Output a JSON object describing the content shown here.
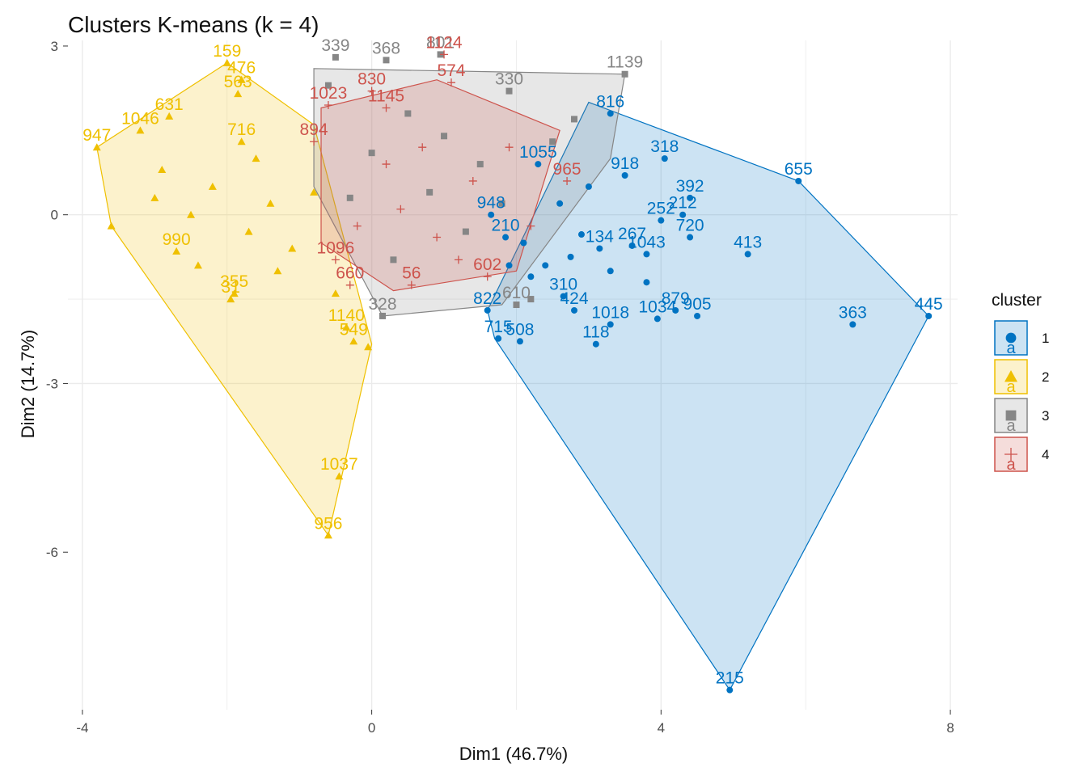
{
  "chart_data": {
    "type": "scatter",
    "title": "Clusters K-means (k = 4)",
    "xlabel": "Dim1 (46.7%)",
    "ylabel": "Dim2 (14.7%)",
    "xlim": [
      -4.2,
      8.1
    ],
    "ylim": [
      -8.8,
      3.1
    ],
    "xticks": [
      -4,
      0,
      4,
      8
    ],
    "yticks": [
      3,
      0,
      -3,
      -6
    ],
    "grid": true,
    "legend": {
      "title": "cluster",
      "placement": "right",
      "key_glyph": "a"
    },
    "series": [
      {
        "name": "1",
        "color": "#0073C2",
        "marker": "circle",
        "hull": [
          [
            1.7,
            -2.2
          ],
          [
            4.95,
            -8.45
          ],
          [
            7.7,
            -1.8
          ],
          [
            5.9,
            0.6
          ],
          [
            3.0,
            2.0
          ],
          [
            1.6,
            -1.7
          ]
        ],
        "points": [
          {
            "x": 4.95,
            "y": -8.45,
            "label": "215"
          },
          {
            "x": 7.7,
            "y": -1.8,
            "label": "445"
          },
          {
            "x": 6.65,
            "y": -1.95,
            "label": "363"
          },
          {
            "x": 5.9,
            "y": 0.6,
            "label": "655"
          },
          {
            "x": 5.2,
            "y": -0.7,
            "label": "413"
          },
          {
            "x": 4.4,
            "y": 0.3,
            "label": "392"
          },
          {
            "x": 4.05,
            "y": 1.0,
            "label": "318"
          },
          {
            "x": 4.5,
            "y": -1.8,
            "label": "905"
          },
          {
            "x": 4.2,
            "y": -1.7,
            "label": "879"
          },
          {
            "x": 3.95,
            "y": -1.85,
            "label": "1034"
          },
          {
            "x": 4.4,
            "y": -0.4,
            "label": "720"
          },
          {
            "x": 4.3,
            "y": 0.0,
            "label": "212"
          },
          {
            "x": 4.0,
            "y": -0.1,
            "label": "252"
          },
          {
            "x": 3.8,
            "y": -0.7,
            "label": "1043"
          },
          {
            "x": 3.3,
            "y": -1.95,
            "label": "1018"
          },
          {
            "x": 3.1,
            "y": -2.3,
            "label": "118"
          },
          {
            "x": 1.75,
            "y": -2.2,
            "label": "715"
          },
          {
            "x": 2.05,
            "y": -2.25,
            "label": "508"
          },
          {
            "x": 1.6,
            "y": -1.7,
            "label": "822"
          },
          {
            "x": 3.3,
            "y": 1.8,
            "label": "816"
          },
          {
            "x": 3.5,
            "y": 0.7,
            "label": "918"
          },
          {
            "x": 2.65,
            "y": -1.45,
            "label": "310"
          },
          {
            "x": 2.8,
            "y": -1.7,
            "label": "424"
          },
          {
            "x": 1.85,
            "y": -0.4,
            "label": "210"
          },
          {
            "x": 1.65,
            "y": 0.0,
            "label": "948"
          },
          {
            "x": 2.3,
            "y": 0.9,
            "label": "1055"
          },
          {
            "x": 3.15,
            "y": -0.6,
            "label": "134"
          },
          {
            "x": 3.6,
            "y": -0.55,
            "label": "267"
          },
          {
            "x": 2.1,
            "y": -0.5,
            "label": ""
          },
          {
            "x": 2.4,
            "y": -0.9,
            "label": ""
          },
          {
            "x": 2.9,
            "y": -0.35,
            "label": ""
          },
          {
            "x": 3.3,
            "y": -1.0,
            "label": ""
          },
          {
            "x": 2.6,
            "y": 0.2,
            "label": ""
          },
          {
            "x": 2.2,
            "y": -1.1,
            "label": ""
          },
          {
            "x": 3.0,
            "y": 0.5,
            "label": ""
          },
          {
            "x": 3.8,
            "y": -1.2,
            "label": ""
          },
          {
            "x": 1.9,
            "y": -0.9,
            "label": ""
          },
          {
            "x": 2.75,
            "y": -0.75,
            "label": ""
          }
        ]
      },
      {
        "name": "2",
        "color": "#EFC000",
        "marker": "triangle",
        "hull": [
          [
            -3.8,
            1.2
          ],
          [
            -2.0,
            2.7
          ],
          [
            -0.8,
            1.6
          ],
          [
            0.0,
            -2.3
          ],
          [
            -0.6,
            -5.7
          ],
          [
            -3.6,
            -0.2
          ]
        ],
        "points": [
          {
            "x": -2.0,
            "y": 2.7,
            "label": "159"
          },
          {
            "x": -3.8,
            "y": 1.2,
            "label": "947"
          },
          {
            "x": -0.6,
            "y": -5.7,
            "label": "956"
          },
          {
            "x": -0.45,
            "y": -4.65,
            "label": "1037"
          },
          {
            "x": -3.2,
            "y": 1.5,
            "label": "1046"
          },
          {
            "x": -2.8,
            "y": 1.75,
            "label": "631"
          },
          {
            "x": -1.8,
            "y": 1.3,
            "label": "716"
          },
          {
            "x": -1.8,
            "y": 2.4,
            "label": "476"
          },
          {
            "x": -1.85,
            "y": 2.15,
            "label": "563"
          },
          {
            "x": -2.7,
            "y": -0.65,
            "label": "990"
          },
          {
            "x": -1.9,
            "y": -1.4,
            "label": "355"
          },
          {
            "x": -1.95,
            "y": -1.5,
            "label": "31"
          },
          {
            "x": -0.35,
            "y": -2.0,
            "label": "1140"
          },
          {
            "x": -0.25,
            "y": -2.25,
            "label": "549"
          },
          {
            "x": -0.05,
            "y": -2.35,
            "label": ""
          },
          {
            "x": -3.6,
            "y": -0.2,
            "label": ""
          },
          {
            "x": -3.0,
            "y": 0.3,
            "label": ""
          },
          {
            "x": -2.5,
            "y": 0.0,
            "label": ""
          },
          {
            "x": -2.2,
            "y": 0.5,
            "label": ""
          },
          {
            "x": -1.7,
            "y": -0.3,
            "label": ""
          },
          {
            "x": -1.4,
            "y": 0.2,
            "label": ""
          },
          {
            "x": -1.1,
            "y": -0.6,
            "label": ""
          },
          {
            "x": -0.8,
            "y": 0.4,
            "label": ""
          },
          {
            "x": -2.4,
            "y": -0.9,
            "label": ""
          },
          {
            "x": -1.3,
            "y": -1.0,
            "label": ""
          },
          {
            "x": -0.5,
            "y": -1.4,
            "label": ""
          },
          {
            "x": -2.9,
            "y": 0.8,
            "label": ""
          },
          {
            "x": -1.6,
            "y": 1.0,
            "label": ""
          }
        ]
      },
      {
        "name": "3",
        "color": "#868686",
        "marker": "square",
        "hull": [
          [
            -0.8,
            2.6
          ],
          [
            3.5,
            2.5
          ],
          [
            3.3,
            1.0
          ],
          [
            1.8,
            -1.6
          ],
          [
            0.15,
            -1.8
          ],
          [
            -0.8,
            0.5
          ]
        ],
        "points": [
          {
            "x": 3.5,
            "y": 2.5,
            "label": "1139"
          },
          {
            "x": -0.5,
            "y": 2.8,
            "label": "339"
          },
          {
            "x": 0.2,
            "y": 2.75,
            "label": "368"
          },
          {
            "x": 0.95,
            "y": 2.85,
            "label": "801"
          },
          {
            "x": 1.9,
            "y": 2.2,
            "label": "330"
          },
          {
            "x": 0.15,
            "y": -1.8,
            "label": "328"
          },
          {
            "x": 2.0,
            "y": -1.6,
            "label": "610"
          },
          {
            "x": 2.2,
            "y": -1.5,
            "label": ""
          },
          {
            "x": -0.6,
            "y": 2.3,
            "label": ""
          },
          {
            "x": 0.5,
            "y": 1.8,
            "label": ""
          },
          {
            "x": 1.0,
            "y": 1.4,
            "label": ""
          },
          {
            "x": 1.5,
            "y": 0.9,
            "label": ""
          },
          {
            "x": 0.0,
            "y": 1.1,
            "label": ""
          },
          {
            "x": 0.8,
            "y": 0.4,
            "label": ""
          },
          {
            "x": 1.3,
            "y": -0.3,
            "label": ""
          },
          {
            "x": 2.5,
            "y": 1.3,
            "label": ""
          },
          {
            "x": 0.3,
            "y": -0.8,
            "label": ""
          },
          {
            "x": 1.8,
            "y": 0.2,
            "label": ""
          },
          {
            "x": -0.3,
            "y": 0.3,
            "label": ""
          },
          {
            "x": 2.8,
            "y": 1.7,
            "label": ""
          }
        ]
      },
      {
        "name": "4",
        "color": "#CD534C",
        "marker": "cross",
        "hull": [
          [
            -0.7,
            1.9
          ],
          [
            0.9,
            2.4
          ],
          [
            2.6,
            1.5
          ],
          [
            2.0,
            -1.0
          ],
          [
            0.3,
            -1.35
          ],
          [
            -0.7,
            -0.5
          ]
        ],
        "points": [
          {
            "x": 1.0,
            "y": 2.85,
            "label": "1124"
          },
          {
            "x": 1.1,
            "y": 2.35,
            "label": "574"
          },
          {
            "x": 0.0,
            "y": 2.2,
            "label": "830"
          },
          {
            "x": -0.6,
            "y": 1.95,
            "label": "1023"
          },
          {
            "x": -0.8,
            "y": 1.3,
            "label": "894"
          },
          {
            "x": 0.2,
            "y": 1.9,
            "label": "1145"
          },
          {
            "x": 0.55,
            "y": -1.25,
            "label": "56"
          },
          {
            "x": 1.6,
            "y": -1.1,
            "label": "602"
          },
          {
            "x": -0.3,
            "y": -1.25,
            "label": "660"
          },
          {
            "x": 2.7,
            "y": 0.6,
            "label": "965"
          },
          {
            "x": -0.5,
            "y": -0.8,
            "label": "1096"
          },
          {
            "x": 0.4,
            "y": 0.1,
            "label": ""
          },
          {
            "x": 0.9,
            "y": -0.4,
            "label": ""
          },
          {
            "x": 1.4,
            "y": 0.6,
            "label": ""
          },
          {
            "x": 0.2,
            "y": 0.9,
            "label": ""
          },
          {
            "x": -0.2,
            "y": -0.2,
            "label": ""
          },
          {
            "x": 1.9,
            "y": 1.2,
            "label": ""
          },
          {
            "x": 0.7,
            "y": 1.2,
            "label": ""
          },
          {
            "x": 1.2,
            "y": -0.8,
            "label": ""
          },
          {
            "x": 2.2,
            "y": -0.2,
            "label": ""
          }
        ]
      }
    ]
  }
}
